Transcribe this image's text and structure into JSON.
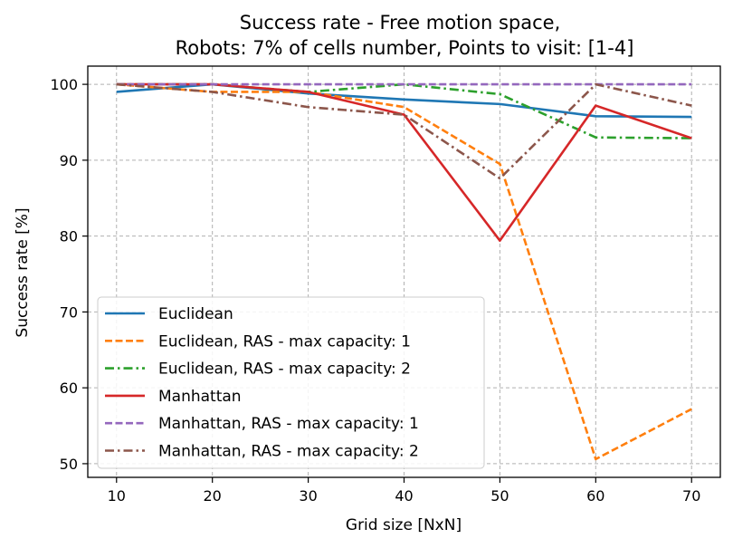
{
  "chart_data": {
    "type": "line",
    "title": "Success rate - Free motion space,",
    "subtitle": "Robots: 7% of cells number, Points to visit: [1-4]",
    "xlabel": "Grid size [NxN]",
    "ylabel": "Success rate [%]",
    "xlim": [
      7,
      73
    ],
    "ylim": [
      48.2,
      102.4
    ],
    "xticks": [
      10,
      20,
      30,
      40,
      50,
      60,
      70
    ],
    "yticks": [
      50,
      60,
      70,
      80,
      90,
      100
    ],
    "grid": true,
    "legend_position": "lower-left",
    "x": [
      10,
      20,
      30,
      40,
      50,
      60,
      70
    ],
    "series": [
      {
        "name": "Euclidean",
        "color": "#1f77b4",
        "style": "solid",
        "values": [
          99.0,
          100.0,
          98.8,
          98.0,
          97.4,
          95.8,
          95.7
        ]
      },
      {
        "name": "Euclidean, RAS - max capacity: 1",
        "color": "#ff7f0e",
        "style": "dashed",
        "values": [
          100.0,
          99.0,
          99.0,
          97.0,
          89.5,
          50.6,
          57.2
        ]
      },
      {
        "name": "Euclidean, RAS - max capacity: 2",
        "color": "#2ca02c",
        "style": "dashdot",
        "values": [
          100.0,
          100.0,
          99.0,
          100.0,
          98.7,
          93.0,
          92.9
        ]
      },
      {
        "name": "Manhattan",
        "color": "#d62728",
        "style": "solid",
        "values": [
          100.0,
          100.0,
          99.0,
          96.0,
          79.4,
          97.2,
          92.9
        ]
      },
      {
        "name": "Manhattan, RAS - max capacity: 1",
        "color": "#9467bd",
        "style": "dashed",
        "values": [
          100.0,
          100.0,
          100.0,
          100.0,
          100.0,
          100.0,
          100.0
        ]
      },
      {
        "name": "Manhattan, RAS - max capacity: 2",
        "color": "#8c564b",
        "style": "dashdot",
        "values": [
          100.0,
          99.0,
          97.0,
          96.0,
          87.6,
          100.0,
          97.2
        ]
      }
    ]
  }
}
